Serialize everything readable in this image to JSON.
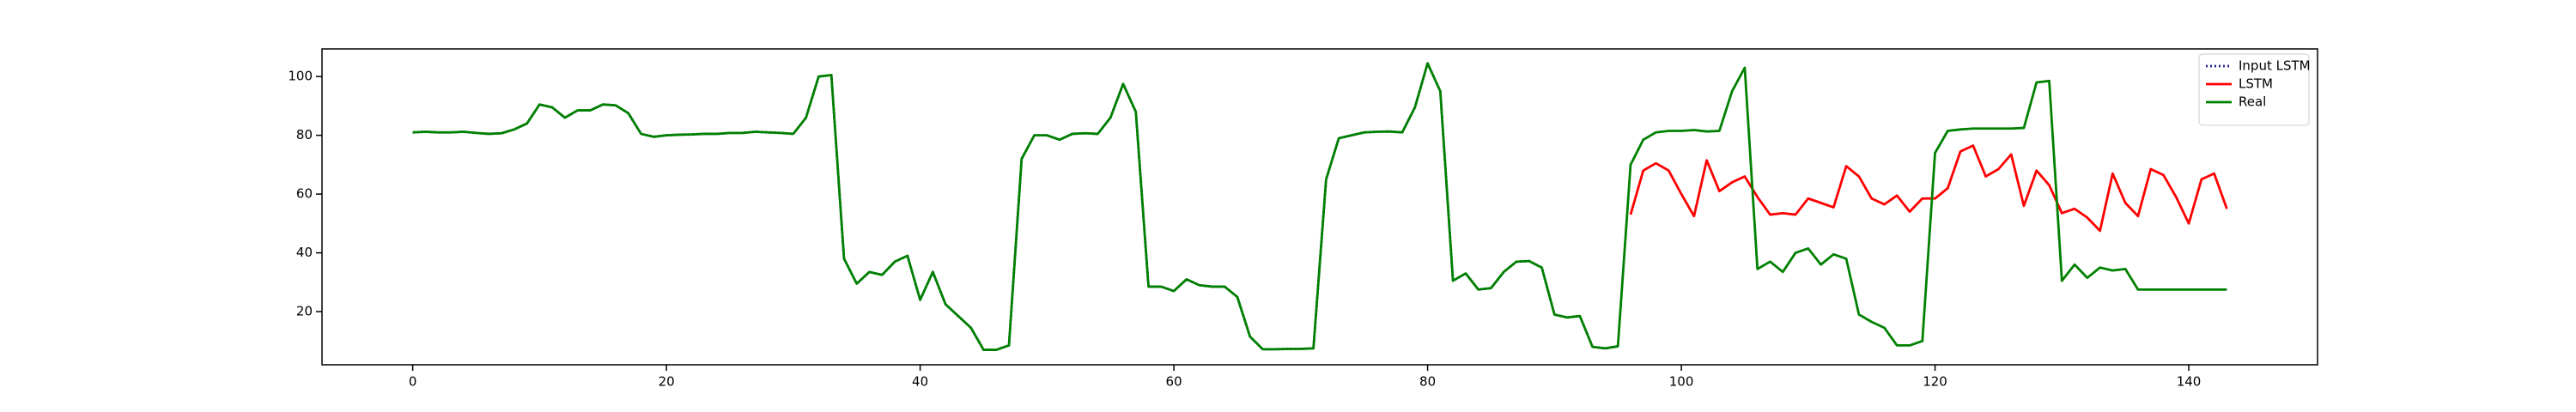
{
  "chart_data": {
    "type": "line",
    "x": [
      0,
      1,
      2,
      3,
      4,
      5,
      6,
      7,
      8,
      9,
      10,
      11,
      12,
      13,
      14,
      15,
      16,
      17,
      18,
      19,
      20,
      21,
      22,
      23,
      24,
      25,
      26,
      27,
      28,
      29,
      30,
      31,
      32,
      33,
      34,
      35,
      36,
      37,
      38,
      39,
      40,
      41,
      42,
      43,
      44,
      45,
      46,
      47,
      48,
      49,
      50,
      51,
      52,
      53,
      54,
      55,
      56,
      57,
      58,
      59,
      60,
      61,
      62,
      63,
      64,
      65,
      66,
      67,
      68,
      69,
      70,
      71,
      72,
      73,
      74,
      75,
      76,
      77,
      78,
      79,
      80,
      81,
      82,
      83,
      84,
      85,
      86,
      87,
      88,
      89,
      90,
      91,
      92,
      93,
      94,
      95,
      96,
      97,
      98,
      99,
      100,
      101,
      102,
      103,
      104,
      105,
      106,
      107,
      108,
      109,
      110,
      111,
      112,
      113,
      114,
      115,
      116,
      117,
      118,
      119,
      120,
      121,
      122,
      123,
      124,
      125,
      126,
      127,
      128,
      129,
      130,
      131,
      132,
      133,
      134,
      135,
      136,
      137,
      138,
      139,
      140,
      141,
      142,
      143
    ],
    "series": [
      {
        "name": "Input LSTM",
        "color": "#1f1f8f",
        "dash": true,
        "values": [
          81,
          81.2,
          81,
          81,
          81.2,
          80.8,
          80.5,
          80.7,
          82,
          84,
          90.5,
          89.5,
          86,
          88.5,
          88.5,
          90.5,
          90.2,
          87.5,
          80.5,
          79.5,
          80,
          80.2,
          80.3,
          80.5,
          80.5,
          80.8,
          80.8,
          81.2,
          81,
          80.8,
          80.5,
          86,
          100,
          100.5,
          38,
          29.5,
          33.5,
          32.5,
          37,
          39,
          24,
          33.5,
          22.5,
          18.5,
          14.5,
          7,
          7,
          8.5,
          72,
          80,
          80,
          78.5,
          80.5,
          80.7,
          80.5,
          86,
          97.5,
          88,
          28.5,
          28.5,
          27,
          31,
          29,
          28.5,
          28.5,
          25,
          11.5,
          7.2,
          7.2,
          7.3,
          7.3,
          7.5,
          65,
          79,
          80,
          81,
          81.2,
          81.3,
          81,
          89.5,
          104.5,
          95,
          30.5,
          33,
          27.5,
          28,
          33.5,
          37,
          37.2,
          35,
          19,
          18,
          18.5,
          8,
          7.5,
          8.2,
          null,
          null,
          null,
          null,
          null,
          null,
          null,
          null,
          null,
          null,
          null,
          null,
          null,
          null,
          null,
          null,
          null,
          null,
          null,
          null,
          null,
          null,
          null,
          null,
          null,
          null,
          null,
          null,
          null,
          null,
          null,
          null,
          null,
          null,
          null,
          null,
          null,
          null,
          null,
          null,
          null,
          null,
          null,
          null,
          null,
          null,
          null,
          null
        ]
      },
      {
        "name": "LSTM",
        "color": "#ff0000",
        "dash": false,
        "values": [
          null,
          null,
          null,
          null,
          null,
          null,
          null,
          null,
          null,
          null,
          null,
          null,
          null,
          null,
          null,
          null,
          null,
          null,
          null,
          null,
          null,
          null,
          null,
          null,
          null,
          null,
          null,
          null,
          null,
          null,
          null,
          null,
          null,
          null,
          null,
          null,
          null,
          null,
          null,
          null,
          null,
          null,
          null,
          null,
          null,
          null,
          null,
          null,
          null,
          null,
          null,
          null,
          null,
          null,
          null,
          null,
          null,
          null,
          null,
          null,
          null,
          null,
          null,
          null,
          null,
          null,
          null,
          null,
          null,
          null,
          null,
          null,
          null,
          null,
          null,
          null,
          null,
          null,
          null,
          null,
          null,
          null,
          null,
          null,
          null,
          null,
          null,
          null,
          null,
          null,
          null,
          null,
          null,
          null,
          null,
          null,
          53,
          68,
          70.5,
          68,
          60,
          52.5,
          71.5,
          61,
          64,
          66,
          59,
          53,
          53.5,
          53,
          58.5,
          57,
          55.5,
          69.5,
          66,
          58.5,
          56.5,
          59.5,
          54,
          58.5,
          58.5,
          62,
          74.5,
          76.5,
          66,
          68.5,
          73.5,
          56,
          68,
          63,
          53.5,
          55,
          52,
          47.5,
          67,
          57,
          52.5,
          68.5,
          66.5,
          59,
          50,
          65,
          67,
          55
        ]
      },
      {
        "name": "Real",
        "color": "#008000",
        "dash": false,
        "values": [
          81,
          81.2,
          81,
          81,
          81.2,
          80.8,
          80.5,
          80.7,
          82,
          84,
          90.5,
          89.5,
          86,
          88.5,
          88.5,
          90.5,
          90.2,
          87.5,
          80.5,
          79.5,
          80,
          80.2,
          80.3,
          80.5,
          80.5,
          80.8,
          80.8,
          81.2,
          81,
          80.8,
          80.5,
          86,
          100,
          100.5,
          38,
          29.5,
          33.5,
          32.5,
          37,
          39,
          24,
          33.5,
          22.5,
          18.5,
          14.5,
          7,
          7,
          8.5,
          72,
          80,
          80,
          78.5,
          80.5,
          80.7,
          80.5,
          86,
          97.5,
          88,
          28.5,
          28.5,
          27,
          31,
          29,
          28.5,
          28.5,
          25,
          11.5,
          7.2,
          7.2,
          7.3,
          7.3,
          7.5,
          65,
          79,
          80,
          81,
          81.2,
          81.3,
          81,
          89.5,
          104.5,
          95,
          30.5,
          33,
          27.5,
          28,
          33.5,
          37,
          37.2,
          35,
          19,
          18,
          18.5,
          8,
          7.5,
          8.2,
          70,
          78.5,
          81,
          81.5,
          81.5,
          81.8,
          81.3,
          81.5,
          95,
          103,
          34.5,
          37,
          33.5,
          40,
          41.5,
          36,
          39.5,
          38,
          19,
          16.5,
          14.5,
          8.5,
          8.5,
          10,
          74,
          81.5,
          82,
          82.3,
          82.3,
          82.3,
          82.3,
          82.5,
          98,
          98.5,
          30.5,
          36,
          31.5,
          35,
          34,
          34.5,
          27.5,
          27.5,
          27.5,
          27.5,
          27.5,
          27.5,
          27.5,
          27.5
        ]
      }
    ],
    "xlim": [
      -7.15,
      150.15
    ],
    "xticks": [
      0,
      20,
      40,
      60,
      80,
      100,
      120,
      140
    ],
    "ylim": [
      1.9,
      109.4
    ],
    "yticks": [
      20,
      40,
      60,
      80,
      100
    ],
    "legend": "upper right"
  }
}
